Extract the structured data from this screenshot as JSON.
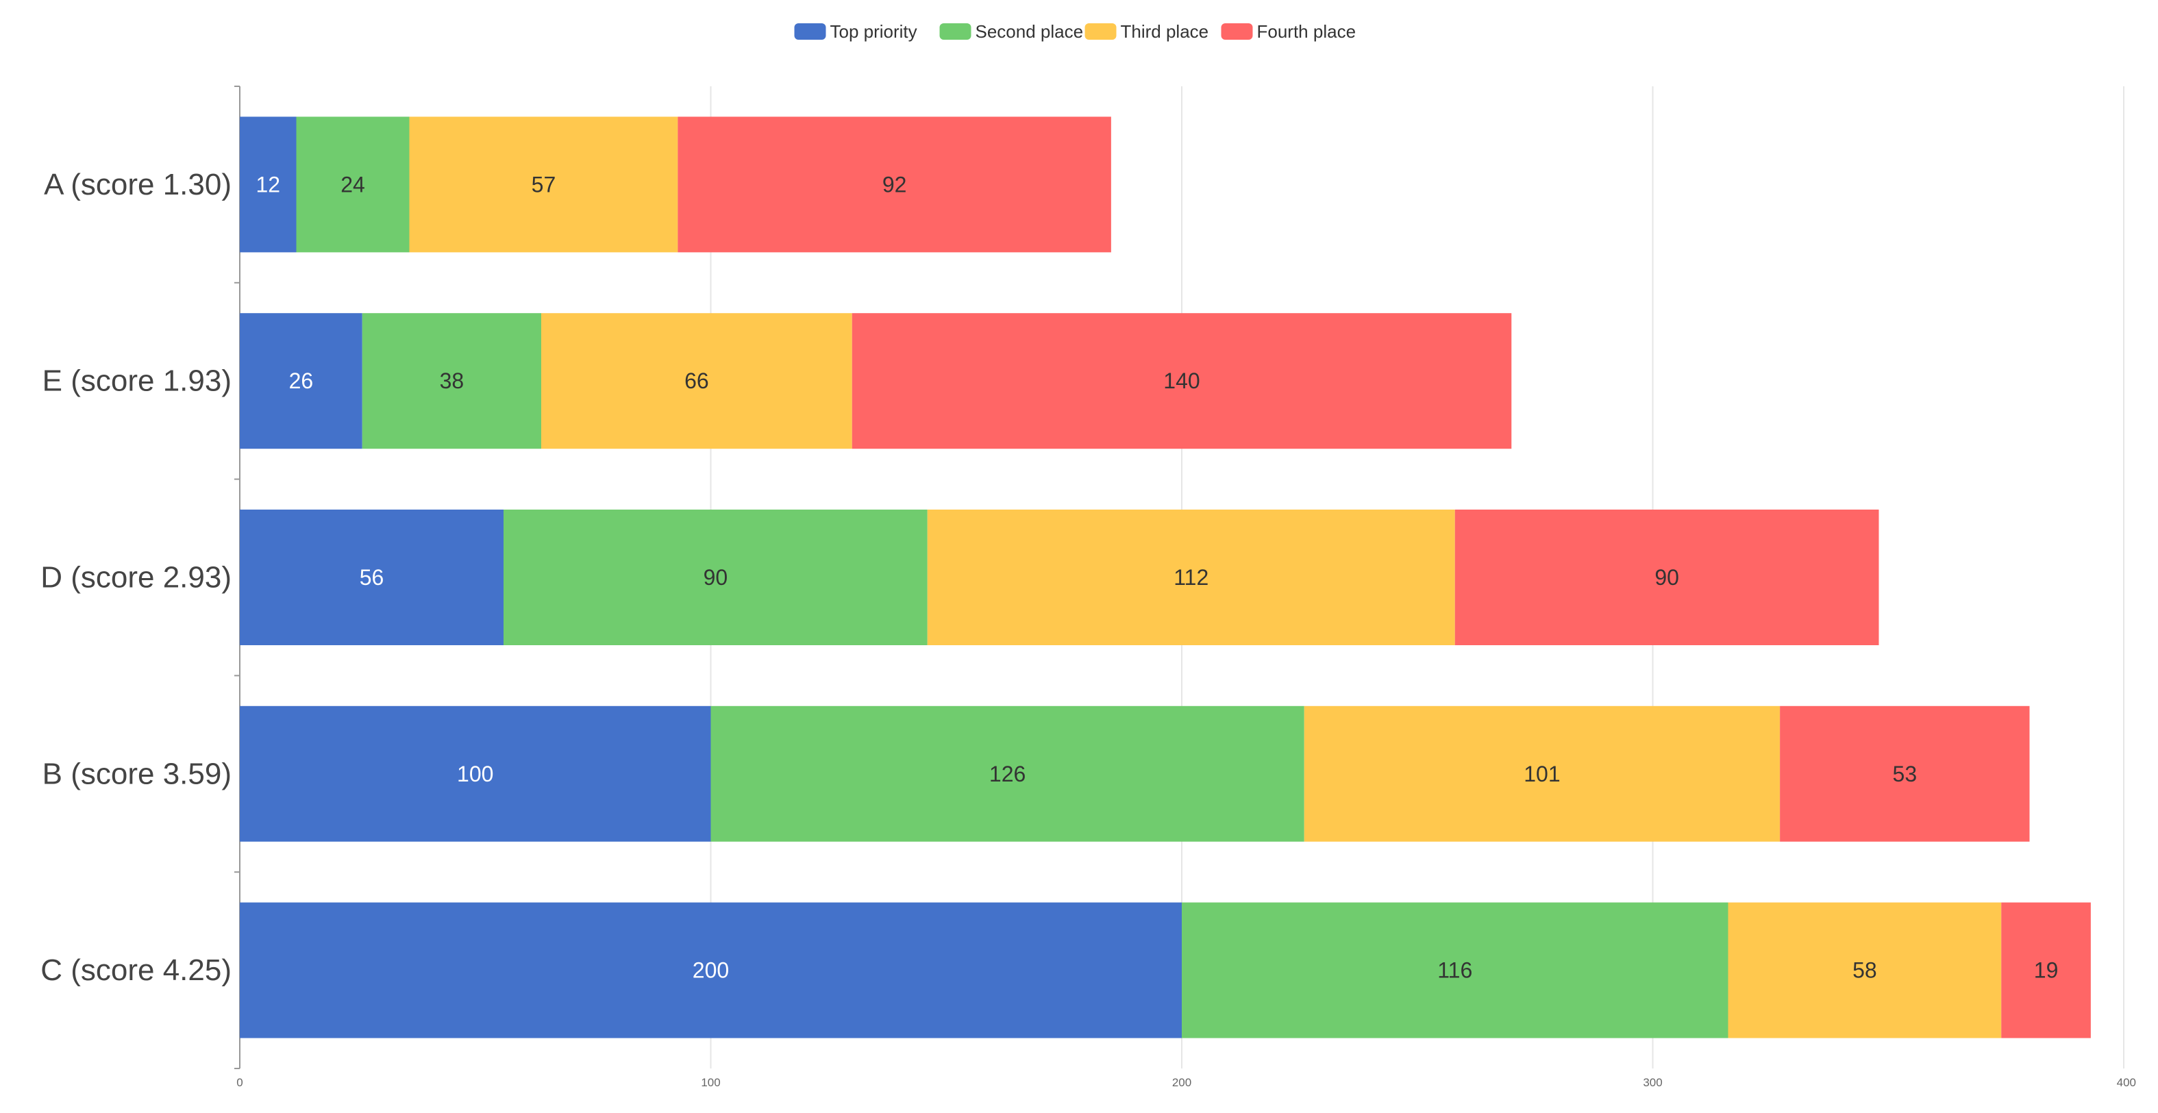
{
  "chart_data": {
    "type": "bar",
    "orientation": "horizontal",
    "stacked": true,
    "title": "",
    "xlabel": "",
    "ylabel": "",
    "categories": [
      "A (score 1.30)",
      "E (score 1.93)",
      "D (score 2.93)",
      "B (score 3.59)",
      "C (score 4.25)"
    ],
    "series": [
      {
        "name": "Top priority",
        "color": "#4472CA",
        "values": [
          12,
          26,
          56,
          100,
          200
        ]
      },
      {
        "name": "Second place",
        "color": "#70CC6E",
        "values": [
          24,
          38,
          90,
          126,
          116
        ]
      },
      {
        "name": "Third place",
        "color": "#FFC84E",
        "values": [
          57,
          66,
          112,
          101,
          58
        ]
      },
      {
        "name": "Fourth place",
        "color": "#FF6666",
        "values": [
          92,
          140,
          90,
          53,
          19
        ]
      }
    ],
    "xlim": [
      0,
      400
    ],
    "xticks": [
      0,
      100,
      200,
      300,
      400
    ],
    "grid": true,
    "legend_position": "top-center",
    "data_labels": true
  }
}
